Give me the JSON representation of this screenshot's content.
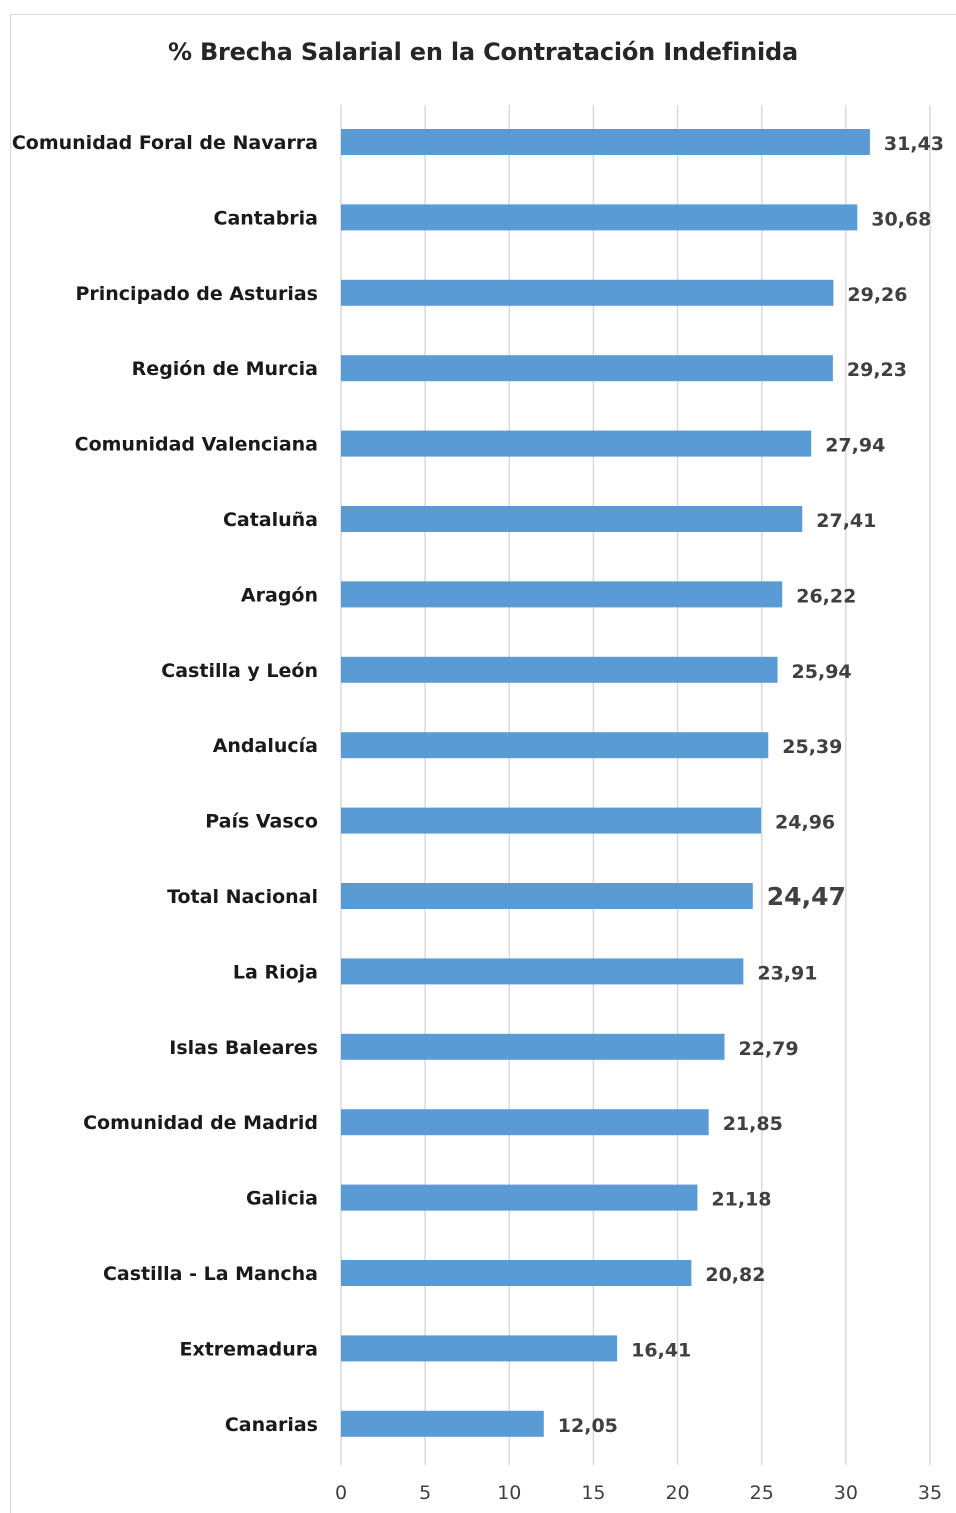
{
  "chart_data": {
    "type": "bar",
    "orientation": "horizontal",
    "title": "% Brecha Salarial en la Contratación Indefinida",
    "categories": [
      "Comunidad Foral de  Navarra",
      "Cantabria",
      "Principado de Asturias",
      "Región de Murcia",
      "Comunidad Valenciana",
      "Cataluña",
      "Aragón",
      "Castilla y León",
      "Andalucía",
      "País Vasco",
      "Total Nacional",
      "La Rioja",
      "Islas Baleares",
      "Comunidad de Madrid",
      "Galicia",
      "Castilla - La Mancha",
      "Extremadura",
      "Canarias"
    ],
    "values": [
      31.43,
      30.68,
      29.26,
      29.23,
      27.94,
      27.41,
      26.22,
      25.94,
      25.39,
      24.96,
      24.47,
      23.91,
      22.79,
      21.85,
      21.18,
      20.82,
      16.41,
      12.05
    ],
    "value_labels": [
      "31,43",
      "30,68",
      "29,26",
      "29,23",
      "27,94",
      "27,41",
      "26,22",
      "25,94",
      "25,39",
      "24,96",
      "24,47",
      "23,91",
      "22,79",
      "21,85",
      "21,18",
      "20,82",
      "16,41",
      "12,05"
    ],
    "highlight_category": "Total Nacional",
    "xlim": [
      0,
      35
    ],
    "xticks": [
      0,
      5,
      10,
      15,
      20,
      25,
      30,
      35
    ],
    "grid": "vertical",
    "bar_color": "#5b9bd5",
    "grid_color": "#d9d9d9"
  }
}
